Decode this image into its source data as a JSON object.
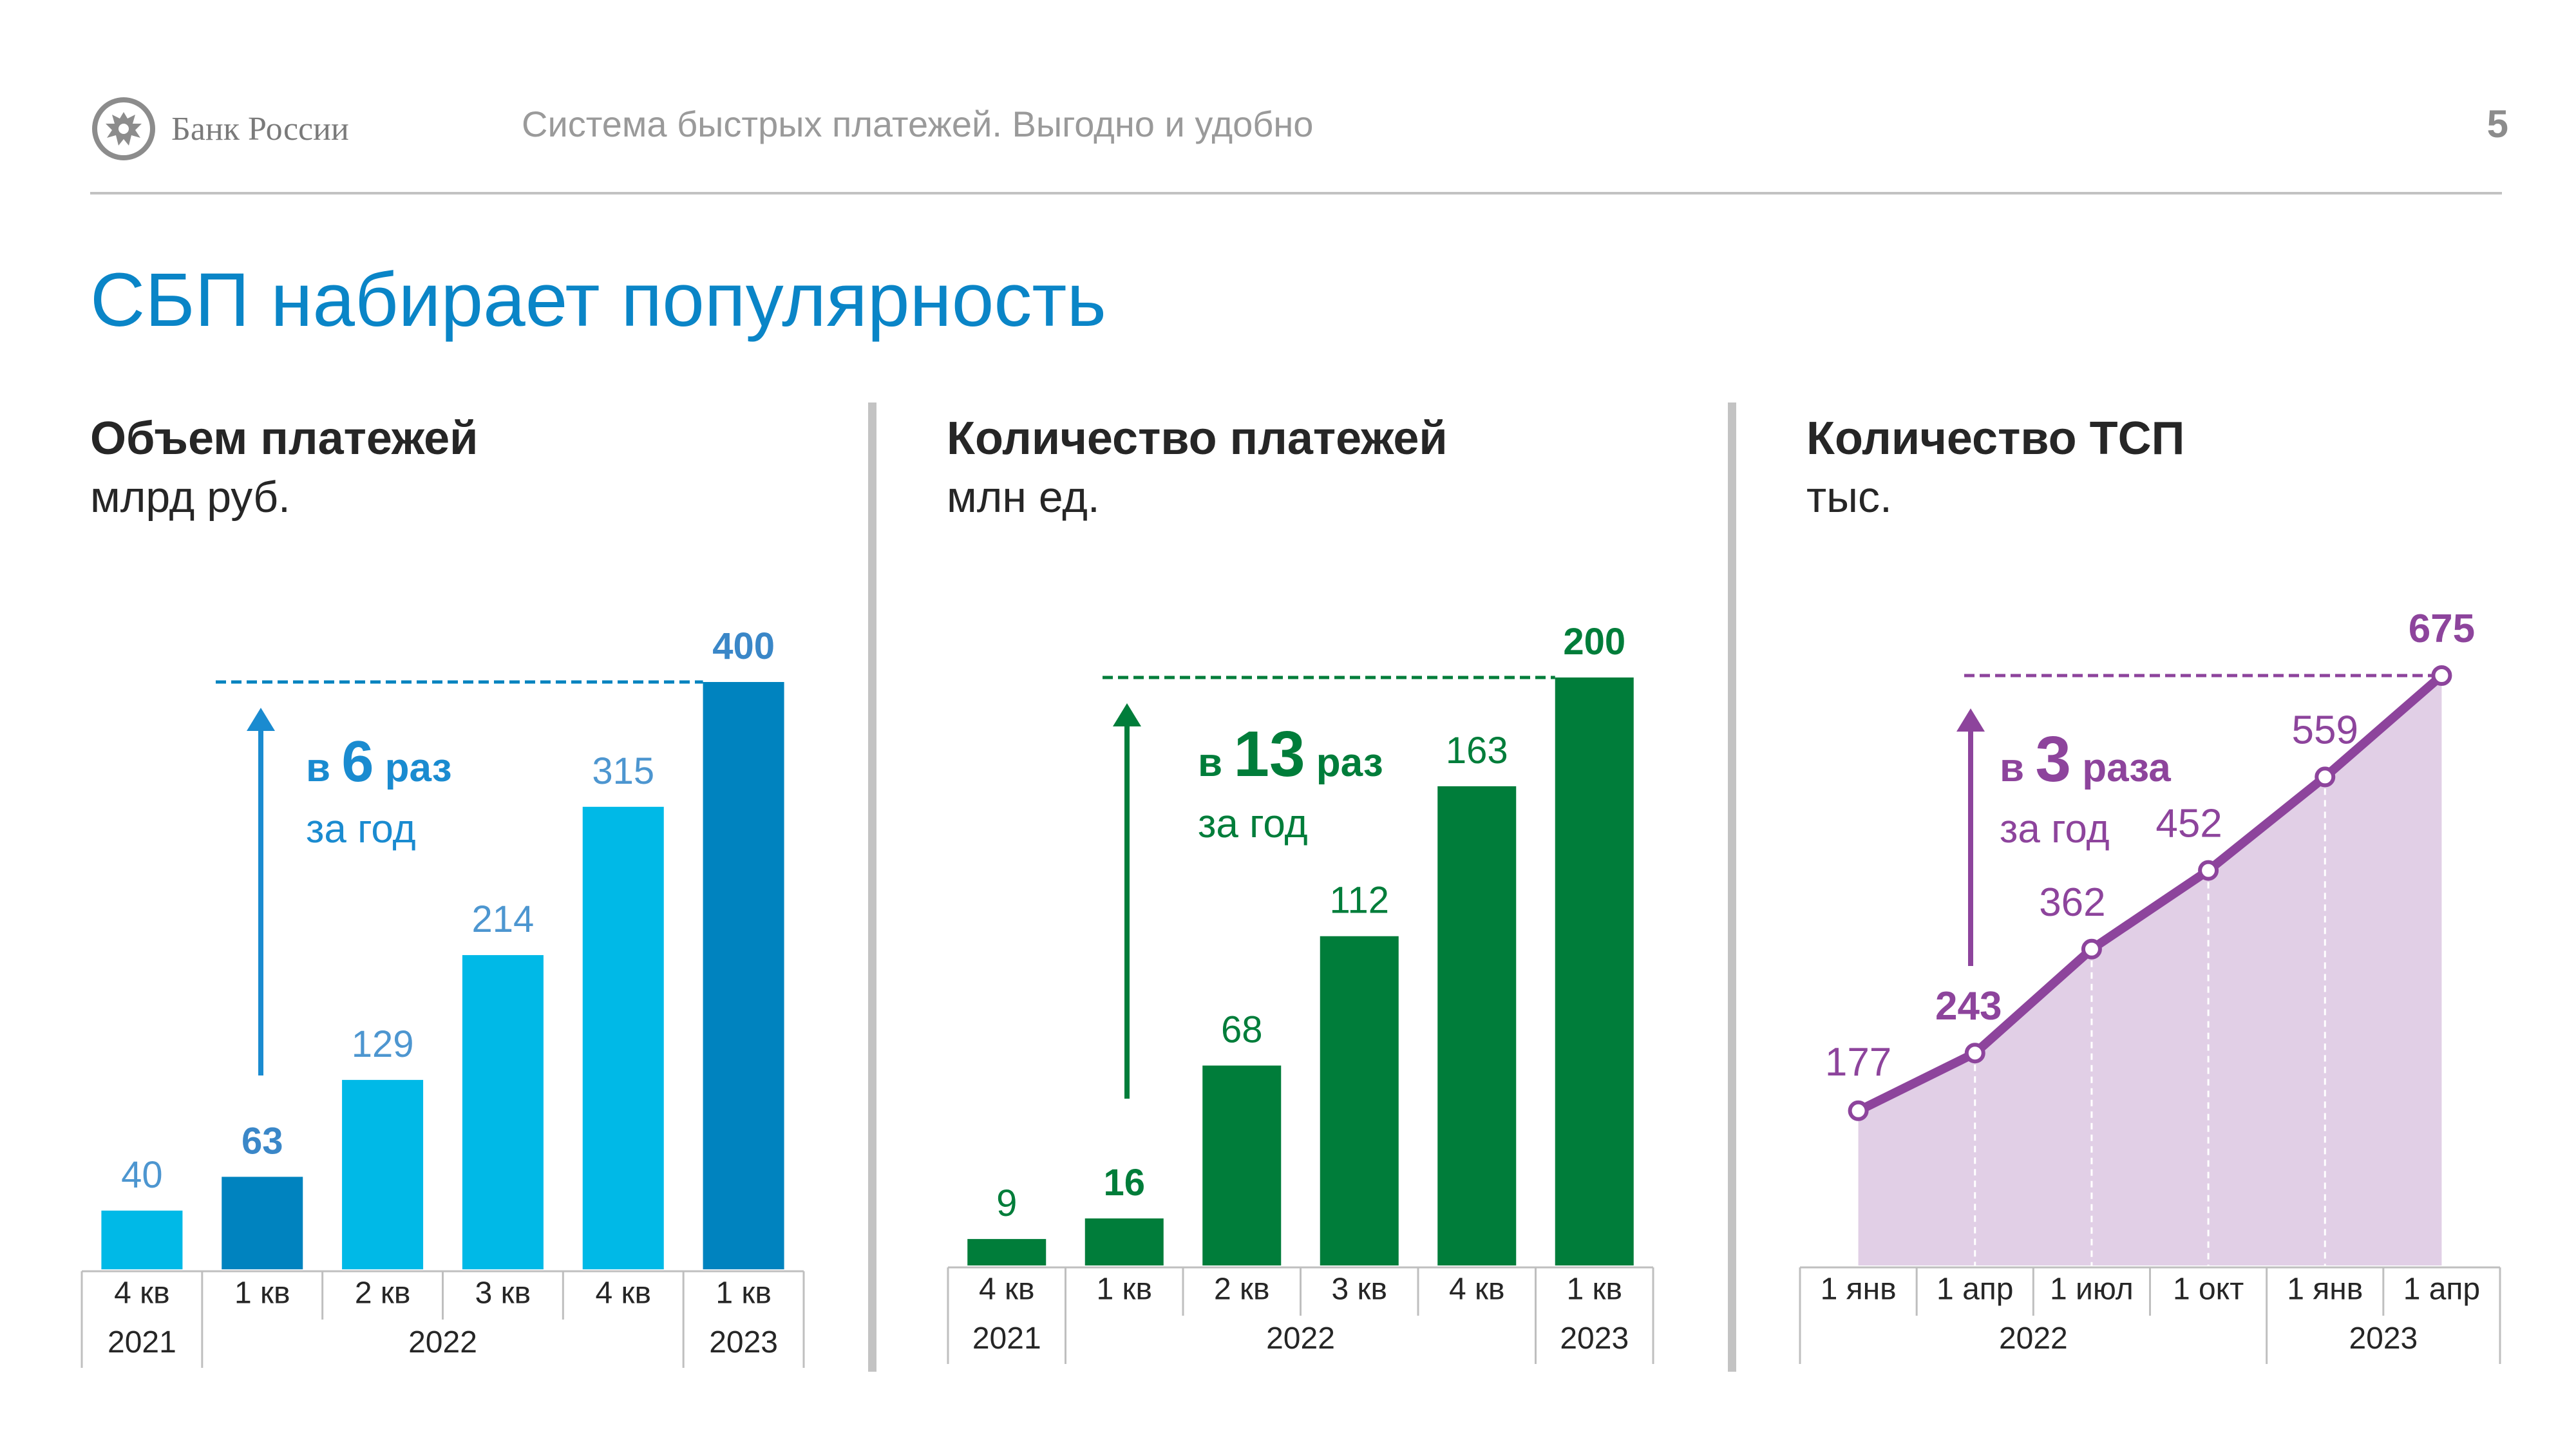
{
  "header": {
    "logo_text": "Банк России",
    "subtitle": "Система быстрых платежей. Выгодно и удобно",
    "page_number": "5"
  },
  "title": "СБП набирает популярность",
  "colors": {
    "title_blue": "#0a85c7",
    "bar_light_blue": "#00b9e7",
    "bar_dark_blue": "#0083bf",
    "green": "#007d3a",
    "purple": "#8d449c",
    "purple_fill": "#e1cfe6"
  },
  "chart_data": [
    {
      "type": "bar",
      "title": "Объем платежей",
      "ylabel": "млрд руб.",
      "categories": [
        "4 кв",
        "1 кв",
        "2 кв",
        "3 кв",
        "4 кв",
        "1 кв"
      ],
      "year_groups": [
        {
          "label": "2021",
          "count": 1
        },
        {
          "label": "2022",
          "count": 4
        },
        {
          "label": "2023",
          "count": 1
        }
      ],
      "values": [
        40,
        63,
        129,
        214,
        315,
        400
      ],
      "value_labels": [
        "40",
        "63",
        "129",
        "214",
        "315",
        "400"
      ],
      "highlight_indices": [
        1,
        5
      ],
      "ylim": [
        0,
        400
      ],
      "annotation": {
        "prefix": "в ",
        "number": "6",
        "suffix": " раз",
        "line2": "за год"
      }
    },
    {
      "type": "bar",
      "title": "Количество платежей",
      "ylabel": "млн ед.",
      "categories": [
        "4 кв",
        "1 кв",
        "2 кв",
        "3 кв",
        "4 кв",
        "1 кв"
      ],
      "year_groups": [
        {
          "label": "2021",
          "count": 1
        },
        {
          "label": "2022",
          "count": 4
        },
        {
          "label": "2023",
          "count": 1
        }
      ],
      "values": [
        9,
        16,
        68,
        112,
        163,
        200
      ],
      "value_labels": [
        "9",
        "16",
        "68",
        "112",
        "163",
        "200"
      ],
      "highlight_indices": [
        1,
        5
      ],
      "ylim": [
        0,
        200
      ],
      "annotation": {
        "prefix": "в ",
        "number": "13",
        "suffix": " раз",
        "line2": "за год"
      }
    },
    {
      "type": "area",
      "title": "Количество ТСП",
      "ylabel": "тыс.",
      "categories": [
        "1 янв",
        "1 апр",
        "1 июл",
        "1 окт",
        "1 янв",
        "1 апр"
      ],
      "year_groups": [
        {
          "label": "2022",
          "count": 4
        },
        {
          "label": "2023",
          "count": 2
        }
      ],
      "values": [
        177,
        243,
        362,
        452,
        559,
        675
      ],
      "value_labels": [
        "177",
        "243",
        "362",
        "452",
        "559",
        "675"
      ],
      "highlight_indices": [
        1,
        5
      ],
      "ylim": [
        0,
        675
      ],
      "annotation": {
        "prefix": "в ",
        "number": "3",
        "suffix": " раза",
        "line2": "за год"
      }
    }
  ]
}
